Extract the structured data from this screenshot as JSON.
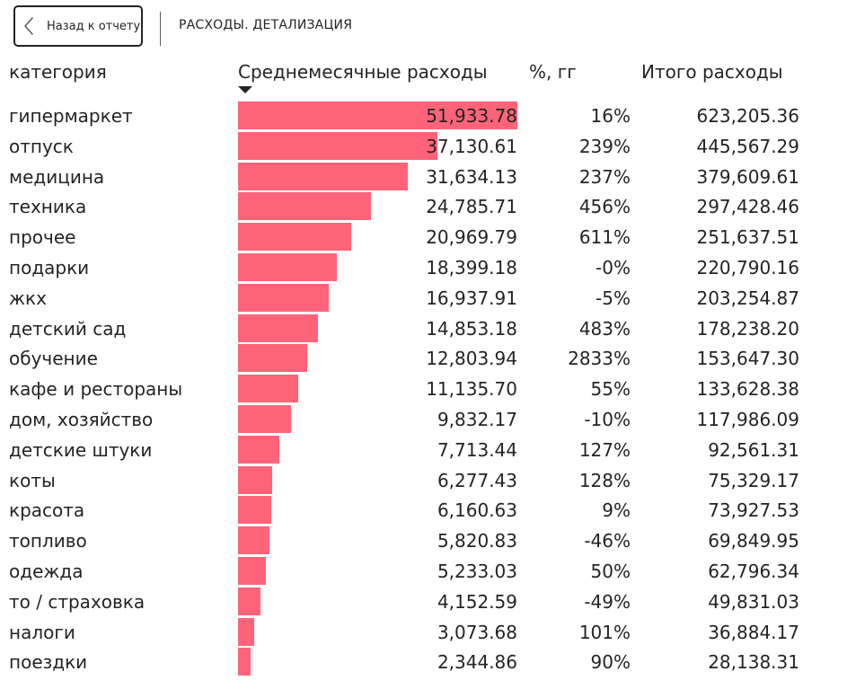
{
  "toolbar": {
    "back_label": "Назад к отчету",
    "page_title": "РАСХОДЫ. ДЕТАЛИЗАЦИЯ"
  },
  "table": {
    "headers": {
      "category": "категория",
      "avg": "Среднемесячные расходы",
      "pct": "%, гг",
      "total": "Итого расходы"
    },
    "sort": "desc",
    "bar_color": "#fd6479",
    "rows": [
      {
        "category": "гипермаркет",
        "avg": "51,933.78",
        "avg_value": 51933.78,
        "pct": "16%",
        "total": "623,205.36"
      },
      {
        "category": "отпуск",
        "avg": "37,130.61",
        "avg_value": 37130.61,
        "pct": "239%",
        "total": "445,567.29"
      },
      {
        "category": "медицина",
        "avg": "31,634.13",
        "avg_value": 31634.13,
        "pct": "237%",
        "total": "379,609.61"
      },
      {
        "category": "техника",
        "avg": "24,785.71",
        "avg_value": 24785.71,
        "pct": "456%",
        "total": "297,428.46"
      },
      {
        "category": "прочее",
        "avg": "20,969.79",
        "avg_value": 20969.79,
        "pct": "611%",
        "total": "251,637.51"
      },
      {
        "category": "подарки",
        "avg": "18,399.18",
        "avg_value": 18399.18,
        "pct": "-0%",
        "total": "220,790.16"
      },
      {
        "category": "жкх",
        "avg": "16,937.91",
        "avg_value": 16937.91,
        "pct": "-5%",
        "total": "203,254.87"
      },
      {
        "category": "детский сад",
        "avg": "14,853.18",
        "avg_value": 14853.18,
        "pct": "483%",
        "total": "178,238.20"
      },
      {
        "category": "обучение",
        "avg": "12,803.94",
        "avg_value": 12803.94,
        "pct": "2833%",
        "total": "153,647.30"
      },
      {
        "category": "кафе и рестораны",
        "avg": "11,135.70",
        "avg_value": 11135.7,
        "pct": "55%",
        "total": "133,628.38"
      },
      {
        "category": "дом, хозяйство",
        "avg": "9,832.17",
        "avg_value": 9832.17,
        "pct": "-10%",
        "total": "117,986.09"
      },
      {
        "category": "детские штуки",
        "avg": "7,713.44",
        "avg_value": 7713.44,
        "pct": "127%",
        "total": "92,561.31"
      },
      {
        "category": "коты",
        "avg": "6,277.43",
        "avg_value": 6277.43,
        "pct": "128%",
        "total": "75,329.17"
      },
      {
        "category": "красота",
        "avg": "6,160.63",
        "avg_value": 6160.63,
        "pct": "9%",
        "total": "73,927.53"
      },
      {
        "category": "топливо",
        "avg": "5,820.83",
        "avg_value": 5820.83,
        "pct": "-46%",
        "total": "69,849.95"
      },
      {
        "category": "одежда",
        "avg": "5,233.03",
        "avg_value": 5233.03,
        "pct": "50%",
        "total": "62,796.34"
      },
      {
        "category": "то / страховка",
        "avg": "4,152.59",
        "avg_value": 4152.59,
        "pct": "-49%",
        "total": "49,831.03"
      },
      {
        "category": "налоги",
        "avg": "3,073.68",
        "avg_value": 3073.68,
        "pct": "101%",
        "total": "36,884.17"
      },
      {
        "category": "поездки",
        "avg": "2,344.86",
        "avg_value": 2344.86,
        "pct": "90%",
        "total": "28,138.31"
      }
    ]
  }
}
